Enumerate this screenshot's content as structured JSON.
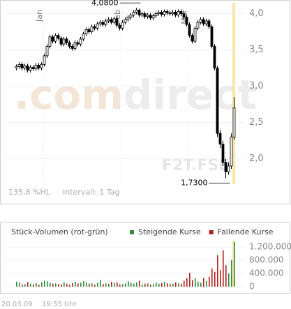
{
  "chart_data": [
    {
      "type": "candlestick",
      "categories": [
        null,
        null,
        null,
        null,
        null,
        null,
        null,
        null,
        null,
        null,
        "Jan",
        null,
        null,
        null,
        null,
        null,
        null,
        null,
        null,
        null,
        null,
        null,
        null,
        null,
        null,
        null,
        null,
        null,
        null,
        null,
        null,
        null,
        null,
        null,
        null,
        null,
        null,
        null,
        "Feb",
        null,
        null,
        null,
        null,
        null,
        null,
        null,
        null,
        null,
        null,
        null,
        null,
        null,
        null,
        null,
        null,
        null,
        null,
        null,
        null,
        null,
        null,
        null,
        "Mär",
        null,
        null,
        null,
        null,
        null,
        null,
        null,
        null,
        null,
        null,
        null,
        null,
        null,
        null,
        null,
        null
      ],
      "open": [
        3.25,
        3.27,
        3.3,
        3.25,
        3.28,
        3.22,
        3.26,
        3.24,
        3.29,
        3.25,
        3.3,
        3.42,
        3.55,
        3.68,
        3.62,
        3.7,
        3.66,
        3.58,
        3.65,
        3.6,
        3.55,
        3.52,
        3.6,
        3.58,
        3.65,
        3.72,
        3.78,
        3.75,
        3.82,
        3.8,
        3.86,
        3.88,
        3.85,
        3.9,
        3.92,
        3.88,
        3.93,
        3.84,
        3.8,
        3.88,
        3.92,
        3.95,
        3.98,
        4.02,
        4.05,
        3.98,
        4.0,
        3.96,
        3.98,
        3.94,
        3.97,
        4.0,
        4.02,
        3.99,
        4.03,
        4.01,
        4.0,
        4.02,
        3.98,
        4.03,
        4.0,
        3.95,
        3.85,
        3.7,
        3.62,
        3.8,
        3.88,
        3.92,
        3.86,
        3.9,
        3.82,
        3.55,
        3.25,
        2.35,
        2.2,
        1.95,
        1.82,
        1.9,
        2.3
      ],
      "high": [
        3.3,
        3.33,
        3.33,
        3.31,
        3.31,
        3.29,
        3.29,
        3.32,
        3.32,
        3.33,
        3.45,
        3.58,
        3.71,
        3.71,
        3.73,
        3.73,
        3.69,
        3.68,
        3.68,
        3.63,
        3.58,
        3.63,
        3.63,
        3.68,
        3.75,
        3.81,
        3.81,
        3.85,
        3.85,
        3.89,
        3.91,
        3.91,
        3.93,
        3.95,
        3.95,
        3.96,
        3.96,
        3.87,
        3.91,
        3.95,
        3.98,
        4.01,
        4.05,
        4.08,
        4.07,
        4.03,
        4.03,
        4.01,
        4.01,
        4.0,
        4.03,
        4.05,
        4.05,
        4.06,
        4.06,
        4.04,
        4.05,
        4.05,
        4.06,
        4.06,
        4.03,
        3.98,
        3.88,
        3.73,
        3.83,
        3.91,
        3.95,
        3.95,
        3.93,
        3.93,
        3.85,
        3.58,
        3.28,
        2.4,
        2.25,
        2.0,
        1.95,
        2.35,
        2.85
      ],
      "low": [
        3.22,
        3.24,
        3.22,
        3.22,
        3.19,
        3.19,
        3.21,
        3.21,
        3.22,
        3.22,
        3.27,
        3.39,
        3.52,
        3.59,
        3.59,
        3.63,
        3.55,
        3.55,
        3.57,
        3.52,
        3.49,
        3.49,
        3.55,
        3.55,
        3.62,
        3.69,
        3.72,
        3.72,
        3.77,
        3.77,
        3.83,
        3.82,
        3.82,
        3.87,
        3.85,
        3.85,
        3.81,
        3.77,
        3.77,
        3.85,
        3.89,
        3.92,
        3.95,
        3.99,
        3.95,
        3.95,
        3.93,
        3.93,
        3.91,
        3.91,
        3.94,
        3.97,
        3.96,
        3.96,
        3.98,
        3.97,
        3.97,
        3.95,
        3.95,
        3.97,
        3.92,
        3.82,
        3.67,
        3.59,
        3.59,
        3.77,
        3.85,
        3.83,
        3.83,
        3.79,
        3.52,
        3.22,
        2.3,
        2.15,
        1.9,
        1.73,
        1.78,
        1.86,
        2.26
      ],
      "close": [
        3.27,
        3.3,
        3.25,
        3.28,
        3.22,
        3.26,
        3.24,
        3.29,
        3.25,
        3.3,
        3.42,
        3.55,
        3.68,
        3.62,
        3.7,
        3.66,
        3.58,
        3.65,
        3.6,
        3.55,
        3.52,
        3.6,
        3.58,
        3.65,
        3.72,
        3.78,
        3.75,
        3.82,
        3.8,
        3.86,
        3.88,
        3.85,
        3.9,
        3.92,
        3.88,
        3.93,
        3.84,
        3.8,
        3.88,
        3.92,
        3.95,
        3.98,
        4.02,
        4.05,
        3.98,
        4.0,
        3.96,
        3.98,
        3.94,
        3.97,
        4.0,
        4.02,
        3.99,
        4.03,
        4.01,
        4.0,
        4.02,
        3.98,
        4.03,
        4.0,
        3.95,
        3.85,
        3.7,
        3.62,
        3.8,
        3.88,
        3.92,
        3.86,
        3.9,
        3.82,
        3.55,
        3.25,
        2.35,
        2.2,
        1.95,
        1.82,
        1.9,
        2.3,
        2.7
      ],
      "ylim": [
        1.65,
        4.14
      ],
      "yticks": [
        {
          "value": 2,
          "label": "2,0"
        },
        {
          "value": 2.5,
          "label": "2,5"
        },
        {
          "value": 3,
          "label": "3,0"
        },
        {
          "value": 3.5,
          "label": "3,5"
        },
        {
          "value": 4,
          "label": "4,0"
        }
      ],
      "annotations": [
        {
          "index": 43,
          "value": 4.08,
          "label": "4,0800"
        },
        {
          "index": 75,
          "value": 1.73,
          "label": "1,7300"
        }
      ],
      "watermark": [
        ".com",
        "direct"
      ],
      "symbol": "F2T.FSE",
      "range_info": "135,8 %HL",
      "interval": "Intervall: 1 Tag",
      "highlight_index": 78,
      "highlight_color": "#fbe6a6",
      "rising_color": "#ffffff",
      "falling_color": "#000000"
    },
    {
      "type": "bar",
      "title": "Stück-Volumen (rot-grün)",
      "legend": [
        {
          "name": "Steigende Kurse",
          "color": "#2e8b3a"
        },
        {
          "name": "Fallende Kurse",
          "color": "#b3201e"
        }
      ],
      "values": [
        150000,
        120000,
        60000,
        80000,
        140000,
        90000,
        70000,
        110000,
        60000,
        130000,
        180000,
        160000,
        120000,
        90000,
        100000,
        80000,
        70000,
        140000,
        90000,
        60000,
        110000,
        150000,
        100000,
        120000,
        170000,
        130000,
        90000,
        100000,
        60000,
        120000,
        200000,
        80000,
        100000,
        90000,
        150000,
        110000,
        130000,
        70000,
        80000,
        100000,
        160000,
        110000,
        90000,
        130000,
        180000,
        70000,
        90000,
        100000,
        60000,
        80000,
        120000,
        90000,
        110000,
        150000,
        100000,
        80000,
        90000,
        130000,
        100000,
        90000,
        180000,
        260000,
        420000,
        200000,
        250000,
        150000,
        120000,
        260000,
        180000,
        300000,
        550000,
        450000,
        950000,
        500000,
        1100000,
        650000,
        400000,
        800000,
        1350000
      ],
      "ylim": [
        0,
        1500000
      ],
      "yticks": [
        0,
        {
          "value": 400000,
          "label": "400.000"
        },
        {
          "value": 800000,
          "label": "800.000"
        },
        {
          "value": 1200000,
          "label": "1.200.000"
        }
      ]
    }
  ],
  "footer": {
    "date": "20.03.09",
    "time": "19:55 Uhr"
  }
}
